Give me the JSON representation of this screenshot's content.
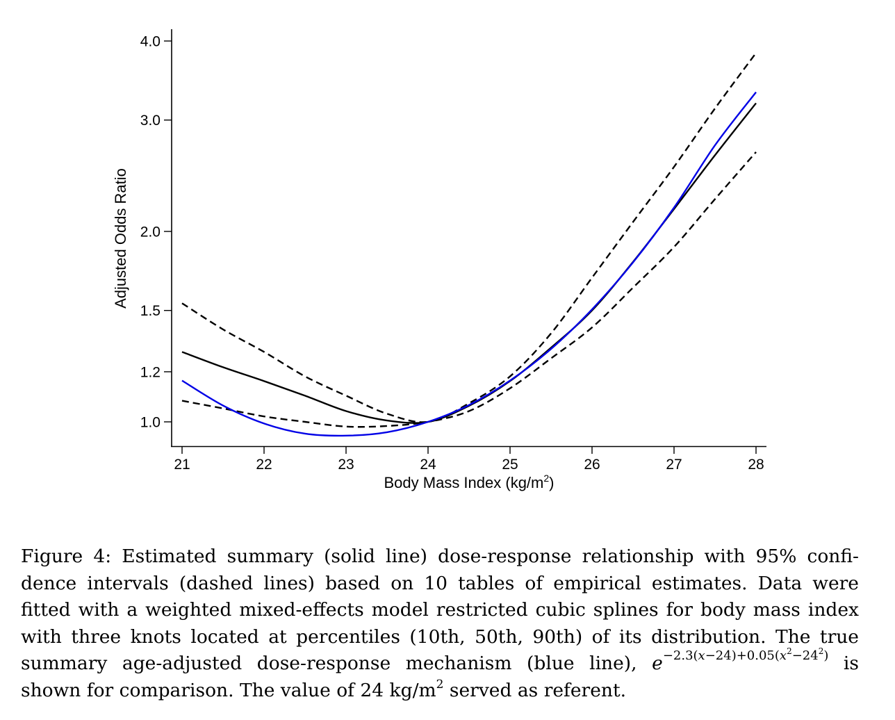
{
  "chart_data": {
    "type": "line",
    "title": "",
    "xlabel": "Body Mass Index (kg/m",
    "xlabel_sup": "2",
    "xlabel_close": ")",
    "ylabel": "Adjusted Odds Ratio",
    "xlim": [
      21,
      28
    ],
    "ylim": [
      0.93,
      4.2
    ],
    "yscale": "log",
    "grid": false,
    "x_ticks": [
      21,
      22,
      23,
      24,
      25,
      26,
      27,
      28
    ],
    "x_tick_labels": [
      "21",
      "22",
      "23",
      "24",
      "25",
      "26",
      "27",
      "28"
    ],
    "y_ticks": [
      1.0,
      1.2,
      1.5,
      2.0,
      3.0,
      4.0
    ],
    "y_tick_labels": [
      "1.0",
      "1.2",
      "1.5",
      "2.0",
      "3.0",
      "4.0"
    ],
    "x": [
      21,
      21.5,
      22,
      22.5,
      23,
      23.5,
      24,
      24.5,
      25,
      25.5,
      26,
      26.5,
      27,
      27.5,
      28
    ],
    "series": [
      {
        "name": "Estimated summary (solid line)",
        "style": "solid",
        "color": "#000000",
        "values": [
          1.29,
          1.22,
          1.16,
          1.1,
          1.04,
          1.005,
          1.0,
          1.06,
          1.16,
          1.31,
          1.5,
          1.79,
          2.17,
          2.64,
          3.19
        ]
      },
      {
        "name": "Upper 95% confidence interval (dashed line)",
        "style": "dashed",
        "color": "#000000",
        "values": [
          1.54,
          1.4,
          1.29,
          1.18,
          1.1,
          1.03,
          1.0,
          1.07,
          1.18,
          1.38,
          1.69,
          2.07,
          2.53,
          3.13,
          3.83
        ]
      },
      {
        "name": "Lower 95% confidence interval (dashed line)",
        "style": "dashed",
        "color": "#000000",
        "values": [
          1.08,
          1.05,
          1.02,
          1.0,
          0.983,
          0.985,
          1.0,
          1.04,
          1.13,
          1.26,
          1.41,
          1.63,
          1.89,
          2.25,
          2.67
        ]
      },
      {
        "name": "True summary mechanism (blue line)",
        "style": "solid",
        "color": "#0000e6",
        "values": [
          1.162,
          1.061,
          0.994,
          0.958,
          0.951,
          0.963,
          1.0,
          1.063,
          1.162,
          1.304,
          1.506,
          1.787,
          2.181,
          2.737,
          3.32
        ]
      }
    ]
  },
  "caption": {
    "lines": [
      "Figure 4: Estimated summary (solid line) dose-response relationship with 95% confi-",
      "dence intervals (dashed lines) based on 10 tables of empirical estimates. Data were",
      "fitted with a weighted mixed-effects model restricted cubic splines for body mass index",
      "with three knots located at percentiles (10th, 50th, 90th) of its distribution. The true"
    ],
    "line5_before": "summary age-adjusted dose-response mechanism (blue line), ",
    "formula_base": "e",
    "formula_exp_a": "−2.3(",
    "formula_x1": "x",
    "formula_exp_b": "−24)+0.05(",
    "formula_x2": "x",
    "formula_sup1": "2",
    "formula_exp_c": "−24",
    "formula_sup2": "2",
    "formula_exp_d": ")",
    "line5_after": " is",
    "line6_before": "shown for comparison. The value of 24 kg/m",
    "line6_sup": "2",
    "line6_after": " served as referent."
  }
}
